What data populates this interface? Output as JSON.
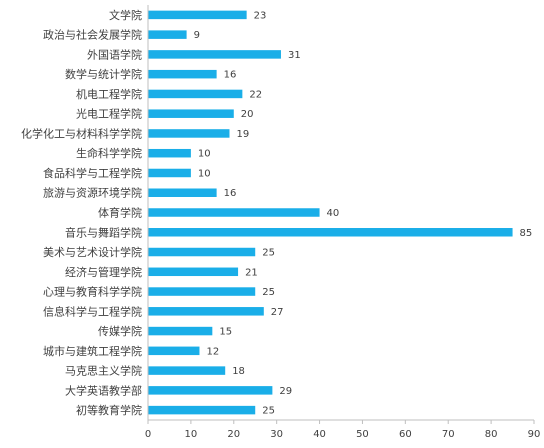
{
  "chart_data": {
    "type": "bar",
    "orientation": "horizontal",
    "title": "",
    "xlabel": "",
    "ylabel": "",
    "xlim": [
      0,
      90
    ],
    "x_ticks": [
      0,
      10,
      20,
      30,
      40,
      50,
      60,
      70,
      80,
      90
    ],
    "grid": false,
    "legend": "none",
    "bar_color": "#1aaee8",
    "categories": [
      "文学院",
      "政治与社会发展学院",
      "外国语学院",
      "数学与统计学院",
      "机电工程学院",
      "光电工程学院",
      "化学化工与材料科学学院",
      "生命科学学院",
      "食品科学与工程学院",
      "旅游与资源环境学院",
      "体育学院",
      "音乐与舞蹈学院",
      "美术与艺术设计学院",
      "经济与管理学院",
      "心理与教育科学学院",
      "信息科学与工程学院",
      "传媒学院",
      "城市与建筑工程学院",
      "马克思主义学院",
      "大学英语教学部",
      "初等教育学院"
    ],
    "values": [
      23,
      9,
      31,
      16,
      22,
      20,
      19,
      10,
      10,
      16,
      40,
      85,
      25,
      21,
      25,
      27,
      15,
      12,
      18,
      29,
      25
    ]
  }
}
